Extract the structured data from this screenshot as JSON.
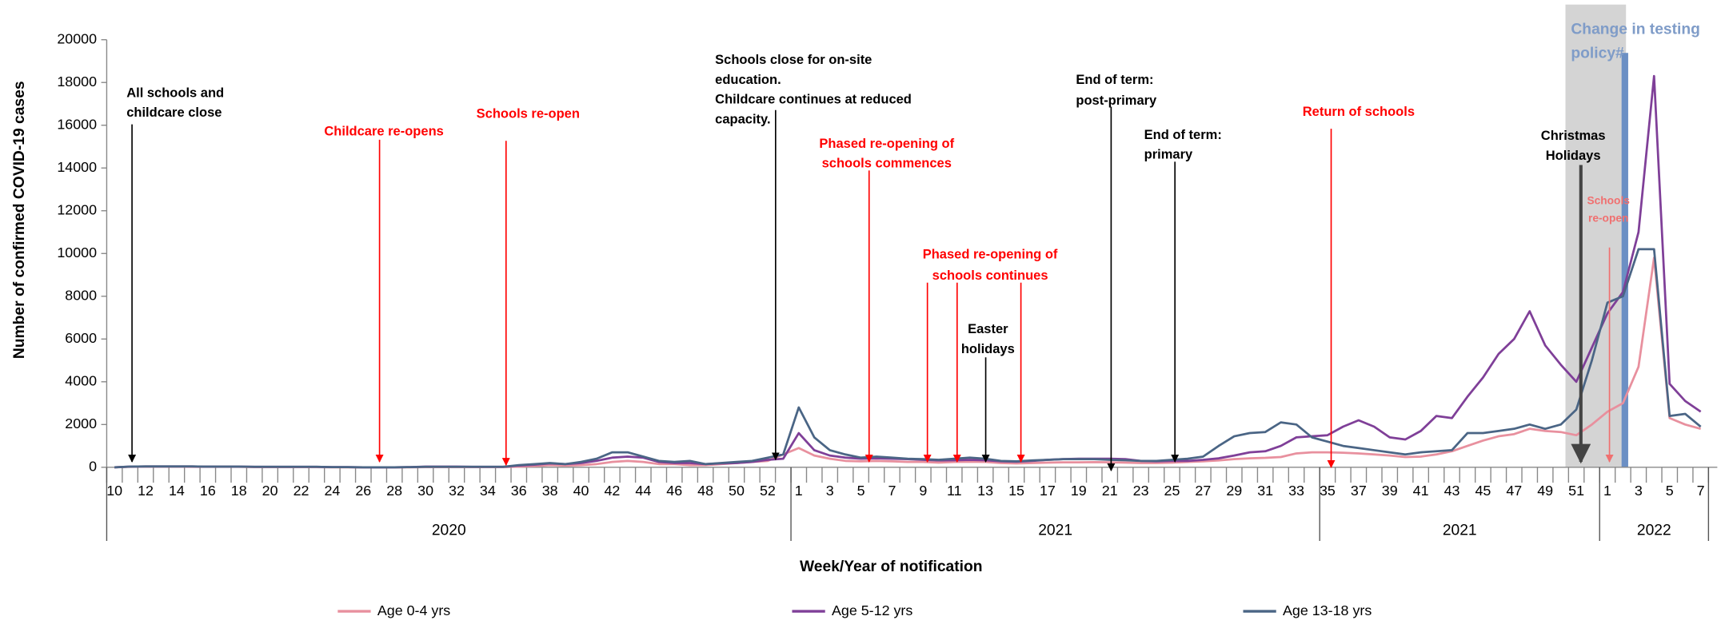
{
  "chart_data": {
    "type": "line",
    "y_axis_label": "Number of confirmed COVID-19 cases",
    "x_axis_label": "Week/Year of notification",
    "ylim": [
      0,
      20000
    ],
    "yticks": [
      0,
      2000,
      4000,
      6000,
      8000,
      10000,
      12000,
      14000,
      16000,
      18000,
      20000
    ],
    "categories": [
      "10",
      null,
      "12",
      null,
      "14",
      null,
      "16",
      null,
      "18",
      null,
      "20",
      null,
      "22",
      null,
      "24",
      null,
      "26",
      null,
      "28",
      null,
      "30",
      null,
      "32",
      null,
      "34",
      null,
      "36",
      null,
      "38",
      null,
      "40",
      null,
      "42",
      null,
      "44",
      null,
      "46",
      null,
      "48",
      null,
      "50",
      null,
      "52",
      null,
      "1",
      null,
      "3",
      null,
      "5",
      null,
      "7",
      null,
      "9",
      null,
      "11",
      null,
      "13",
      null,
      "15",
      null,
      "17",
      null,
      "19",
      null,
      "21",
      null,
      "23",
      null,
      "25",
      null,
      "27",
      null,
      "29",
      null,
      "31",
      null,
      "33",
      null,
      "35",
      null,
      "37",
      null,
      "39",
      null,
      "41",
      null,
      "43",
      null,
      "45",
      null,
      "47",
      null,
      "49",
      null,
      "51",
      null,
      "1",
      null,
      "3",
      null,
      "5",
      null,
      "7"
    ],
    "year_groups": [
      "2020",
      "2021",
      "2021",
      "2022"
    ],
    "series": [
      {
        "name": "Age 0-4 yrs",
        "color": "#e8909e",
        "values": [
          0,
          20,
          30,
          30,
          30,
          20,
          20,
          20,
          20,
          10,
          10,
          10,
          10,
          10,
          0,
          0,
          0,
          0,
          0,
          0,
          10,
          10,
          10,
          10,
          10,
          10,
          30,
          60,
          100,
          80,
          100,
          150,
          250,
          300,
          250,
          150,
          150,
          100,
          100,
          150,
          200,
          250,
          300,
          600,
          900,
          550,
          400,
          300,
          280,
          300,
          280,
          250,
          250,
          220,
          250,
          260,
          250,
          200,
          180,
          200,
          220,
          230,
          230,
          240,
          230,
          220,
          200,
          200,
          220,
          250,
          280,
          320,
          380,
          420,
          440,
          480,
          650,
          700,
          700,
          680,
          650,
          600,
          550,
          480,
          500,
          600,
          750,
          1000,
          1250,
          1450,
          1550,
          1800,
          1700,
          1650,
          1500,
          2000,
          2600,
          3000,
          4700,
          9800,
          2300,
          2000,
          1800
        ]
      },
      {
        "name": "Age 5-12 yrs",
        "color": "#7f3f98",
        "values": [
          0,
          30,
          40,
          40,
          40,
          40,
          30,
          30,
          30,
          20,
          20,
          20,
          20,
          20,
          10,
          10,
          0,
          0,
          0,
          10,
          30,
          30,
          30,
          20,
          20,
          20,
          80,
          120,
          180,
          150,
          200,
          300,
          450,
          500,
          450,
          250,
          200,
          200,
          150,
          180,
          200,
          250,
          350,
          400,
          1600,
          800,
          550,
          450,
          400,
          420,
          400,
          380,
          350,
          320,
          330,
          350,
          330,
          280,
          260,
          300,
          350,
          380,
          400,
          400,
          400,
          380,
          300,
          280,
          300,
          300,
          350,
          420,
          550,
          700,
          750,
          1000,
          1400,
          1450,
          1500,
          1900,
          2200,
          1900,
          1400,
          1300,
          1700,
          2400,
          2300,
          3300,
          4200,
          5300,
          6000,
          7300,
          5700,
          4800,
          4000,
          5600,
          7200,
          8200,
          11000,
          18300,
          3900,
          3100,
          2600
        ]
      },
      {
        "name": "Age 13-18 yrs",
        "color": "#4a6585",
        "values": [
          0,
          30,
          40,
          40,
          40,
          40,
          30,
          30,
          30,
          20,
          20,
          20,
          20,
          20,
          10,
          10,
          0,
          0,
          0,
          10,
          20,
          20,
          20,
          20,
          20,
          20,
          100,
          150,
          200,
          150,
          250,
          400,
          700,
          700,
          500,
          300,
          250,
          300,
          150,
          200,
          250,
          300,
          450,
          600,
          2800,
          1400,
          800,
          600,
          450,
          500,
          450,
          400,
          380,
          350,
          400,
          450,
          400,
          300,
          280,
          320,
          350,
          380,
          380,
          380,
          350,
          330,
          300,
          300,
          350,
          400,
          500,
          1000,
          1450,
          1600,
          1650,
          2100,
          2000,
          1400,
          1200,
          1000,
          900,
          800,
          700,
          600,
          700,
          750,
          800,
          1600,
          1600,
          1700,
          1800,
          2000,
          1800,
          2000,
          2700,
          5000,
          7700,
          8000,
          10200,
          10200,
          2400,
          2500,
          1900
        ]
      }
    ],
    "annotations": [
      {
        "lines": [
          "All schools and",
          "childcare close"
        ],
        "color": "#000000"
      },
      {
        "lines": [
          "Childcare re-opens"
        ],
        "color": "#ff0000"
      },
      {
        "lines": [
          "Schools re-open"
        ],
        "color": "#ff0000"
      },
      {
        "lines": [
          "Schools close for on-site",
          "education.",
          "Childcare continues at reduced",
          "capacity."
        ],
        "color": "#000000"
      },
      {
        "lines": [
          "Phased re-opening of",
          "schools commences"
        ],
        "color": "#ff0000"
      },
      {
        "lines": [
          "Phased re-opening of",
          "schools continues"
        ],
        "color": "#ff0000"
      },
      {
        "lines": [
          "Easter",
          "holidays"
        ],
        "color": "#000000"
      },
      {
        "lines": [
          "End of term:",
          "post-primary"
        ],
        "color": "#000000"
      },
      {
        "lines": [
          "End of term:",
          "primary"
        ],
        "color": "#000000"
      },
      {
        "lines": [
          "Return of schools"
        ],
        "color": "#ff0000"
      },
      {
        "lines": [
          "Christmas",
          "Holidays"
        ],
        "color": "#000000"
      },
      {
        "lines": [
          "Schools",
          "re-open"
        ],
        "color": "#f07070"
      },
      {
        "lines": [
          "Change in testing",
          "policy#"
        ],
        "color": "#7f9cc8"
      }
    ],
    "legend": "bottom"
  }
}
